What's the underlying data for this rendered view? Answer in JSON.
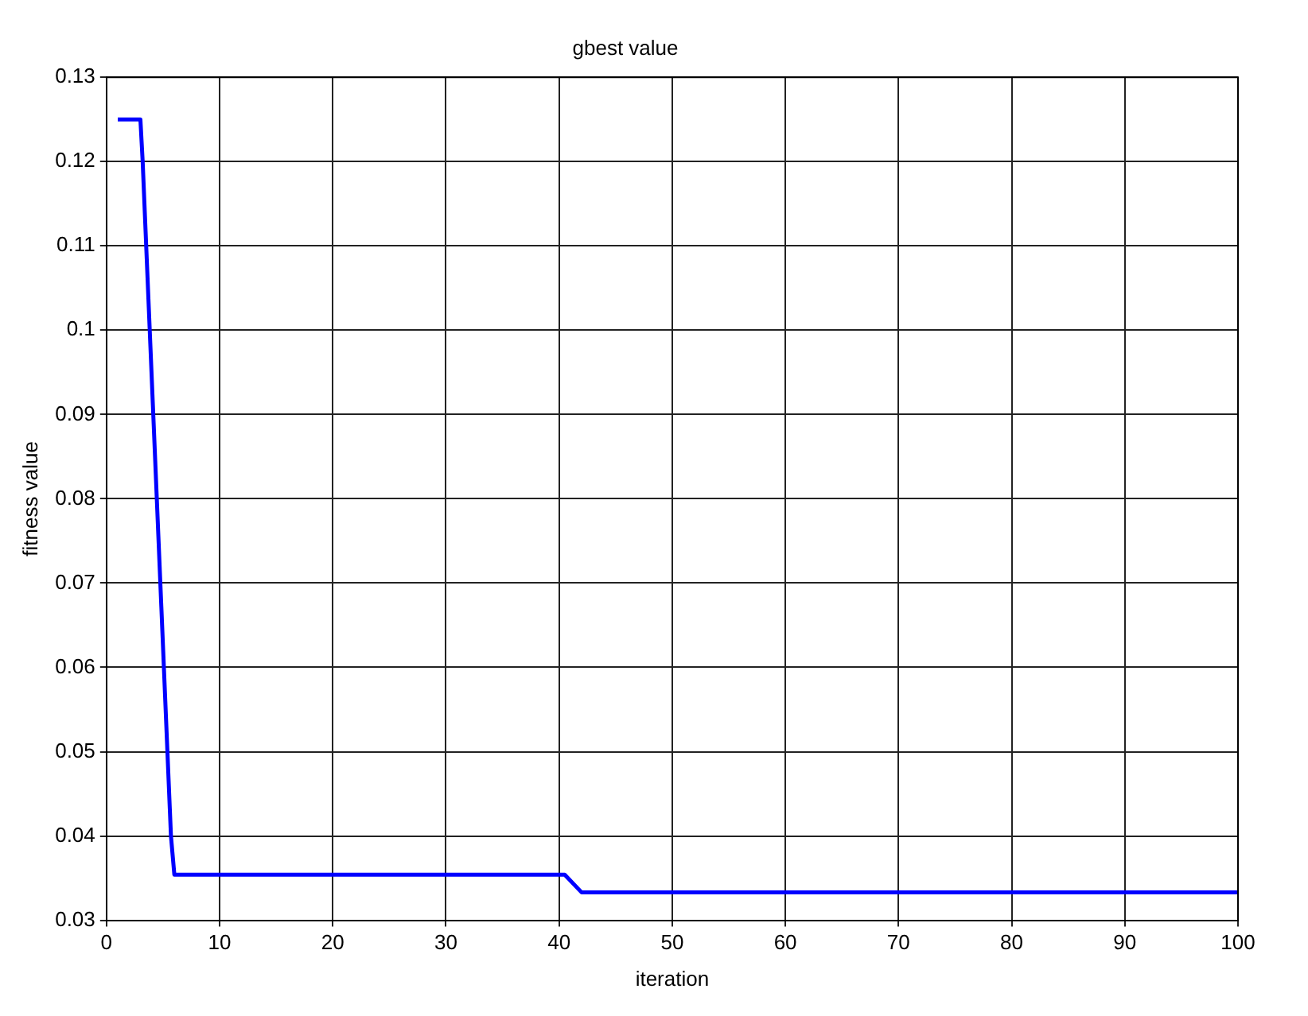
{
  "chart_data": {
    "type": "line",
    "title": "gbest value",
    "xlabel": "iteration",
    "ylabel": "fitness value",
    "series": [
      {
        "color": "#0000ff",
        "x": [
          1,
          3,
          3.2,
          5.7,
          6,
          40.5,
          42,
          100
        ],
        "values": [
          0.125,
          0.125,
          0.12,
          0.04,
          0.0354,
          0.0354,
          0.0333,
          0.0333
        ]
      }
    ],
    "xlim": [
      0,
      100
    ],
    "xticks": [
      0,
      10,
      20,
      30,
      40,
      50,
      60,
      70,
      80,
      90,
      100
    ],
    "ylim": [
      0.03,
      0.13
    ],
    "yticks": [
      0.03,
      0.04,
      0.05,
      0.06,
      0.07,
      0.08,
      0.09,
      0.1,
      0.11,
      0.12,
      0.13
    ],
    "grid": true,
    "legend": false,
    "marker": "none",
    "line_style": "solid"
  }
}
